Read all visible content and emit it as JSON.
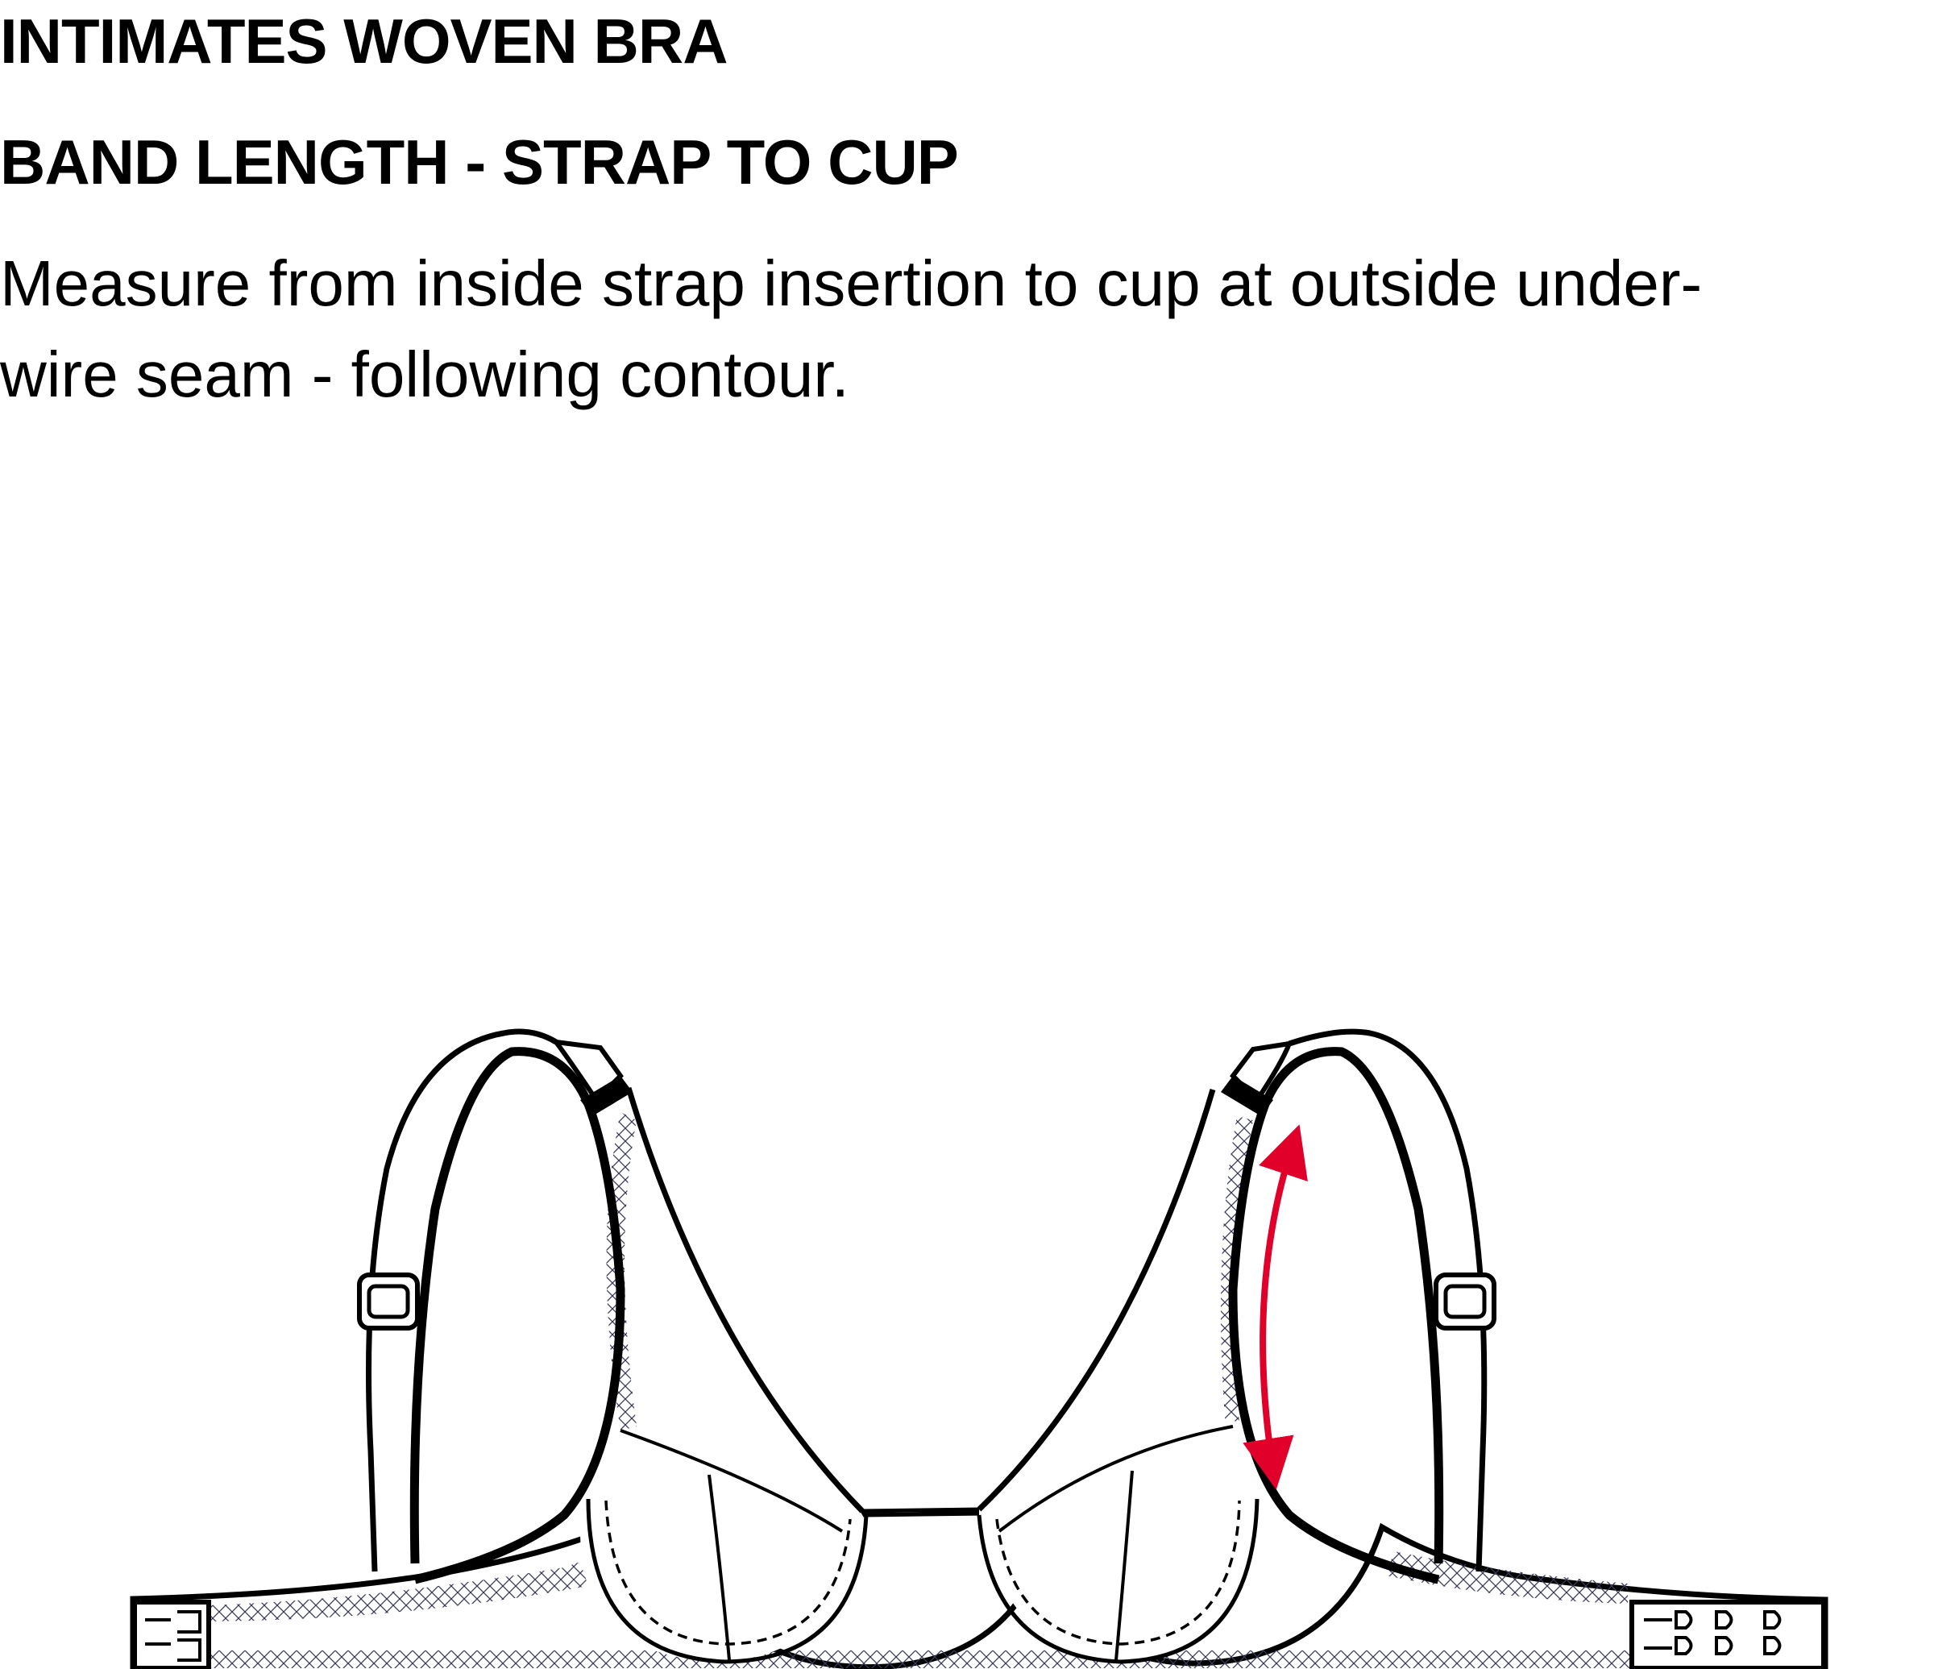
{
  "header": {
    "title": "INTIMATES WOVEN BRA",
    "subtitle": "BAND LENGTH - STRAP TO CUP"
  },
  "description": {
    "line1": "Measure from inside strap insertion to cup at outside under-",
    "line2": "wire seam - following contour."
  },
  "colors": {
    "line": "#000000",
    "lace": "#3a3a5a",
    "measure_arrow": "#e0002a"
  },
  "icons": {
    "garment": "bra-flat-sketch",
    "measurement": "double-headed-arrow"
  }
}
